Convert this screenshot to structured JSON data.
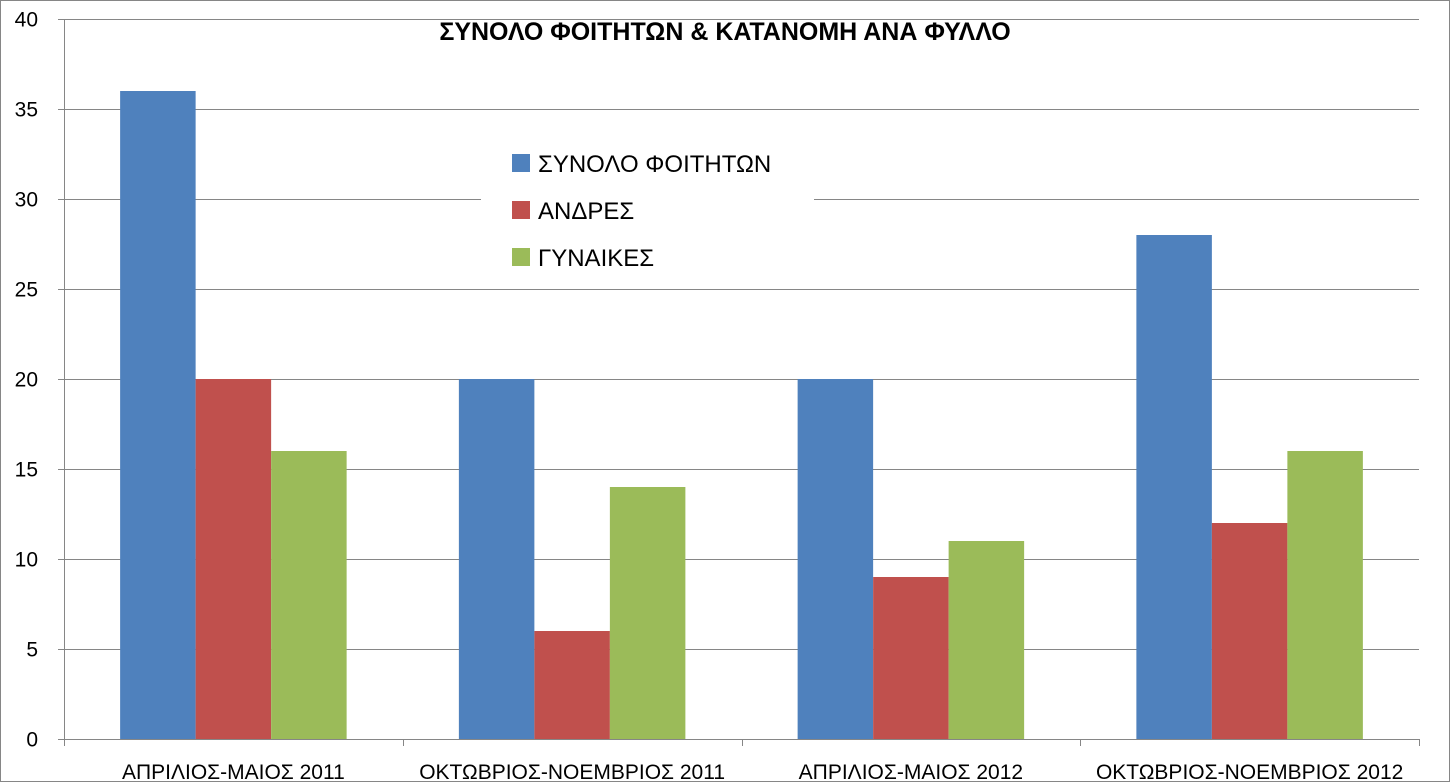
{
  "chart_data": {
    "type": "bar",
    "title": "ΣΥΝΟΛΟ ΦΟΙΤΗΤΩΝ & ΚΑΤΑΝΟΜΗ ΑΝΑ ΦΥΛΛΟ",
    "xlabel": "",
    "ylabel": "",
    "ylim": [
      0,
      40
    ],
    "yticks": [
      "0",
      "5",
      "10",
      "15",
      "20",
      "25",
      "30",
      "35",
      "40"
    ],
    "grid": true,
    "legend_position": "center-top",
    "categories": [
      "ΑΠΡΙΛΙΟΣ-ΜΑΙΟΣ 2011",
      "ΟΚΤΩΒΡΙΟΣ-ΝΟΕΜΒΡΙΟΣ 2011",
      "ΑΠΡΙΛΙΟΣ-ΜΑΙΟΣ 2012",
      "ΟΚΤΩΒΡΙΟΣ-ΝΟΕΜΒΡΙΟΣ 2012"
    ],
    "series": [
      {
        "name": "ΣΥΝΟΛΟ ΦΟΙΤΗΤΩΝ",
        "color": "#4F81BD",
        "values": [
          36,
          20,
          20,
          28
        ]
      },
      {
        "name": "ΑΝΔΡΕΣ",
        "color": "#C0504D",
        "values": [
          20,
          6,
          9,
          12
        ]
      },
      {
        "name": "ΓΥΝΑΙΚΕΣ",
        "color": "#9BBB59",
        "values": [
          16,
          14,
          11,
          16
        ]
      }
    ]
  },
  "colors": {
    "gridline": "#868686",
    "axis": "#868686",
    "frame": "#868686",
    "background": "#ffffff"
  }
}
